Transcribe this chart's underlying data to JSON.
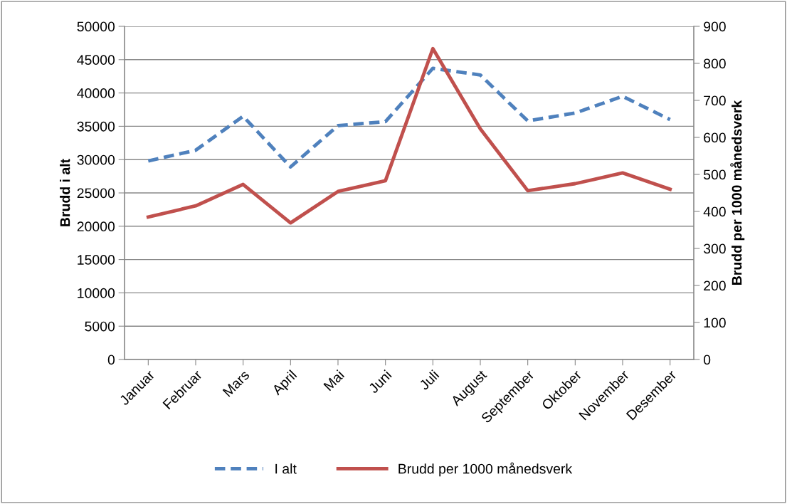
{
  "chart_data": {
    "type": "line",
    "ylabel": "Brudd i alt",
    "y2label": "Brudd per 1000 månedsverk",
    "categories": [
      "Januar",
      "Februar",
      "Mars",
      "April",
      "Mai",
      "Juni",
      "Juli",
      "August",
      "September",
      "Oktober",
      "November",
      "Desember"
    ],
    "series": [
      {
        "name": "I alt",
        "color": "#4f81bd",
        "line_style": "dashed",
        "values": [
          29800,
          31400,
          36500,
          28900,
          35100,
          35700,
          43700,
          42700,
          35800,
          37000,
          39500,
          36000
        ]
      },
      {
        "name": "Brudd per 1000 månedsverk",
        "color": "#c0504d",
        "line_style": "solid",
        "axis": "y2",
        "values": [
          385,
          415,
          473,
          369,
          454,
          483,
          840,
          623,
          456,
          475,
          504,
          460
        ]
      }
    ],
    "ylim": [
      0,
      50000
    ],
    "yticks": [
      0,
      5000,
      10000,
      15000,
      20000,
      25000,
      30000,
      35000,
      40000,
      45000,
      50000
    ],
    "y2lim": [
      0,
      900
    ],
    "y2ticks": [
      0,
      100,
      200,
      300,
      400,
      500,
      600,
      700,
      800,
      900
    ],
    "grid": "y",
    "legend": "bottom",
    "marker": "none"
  }
}
